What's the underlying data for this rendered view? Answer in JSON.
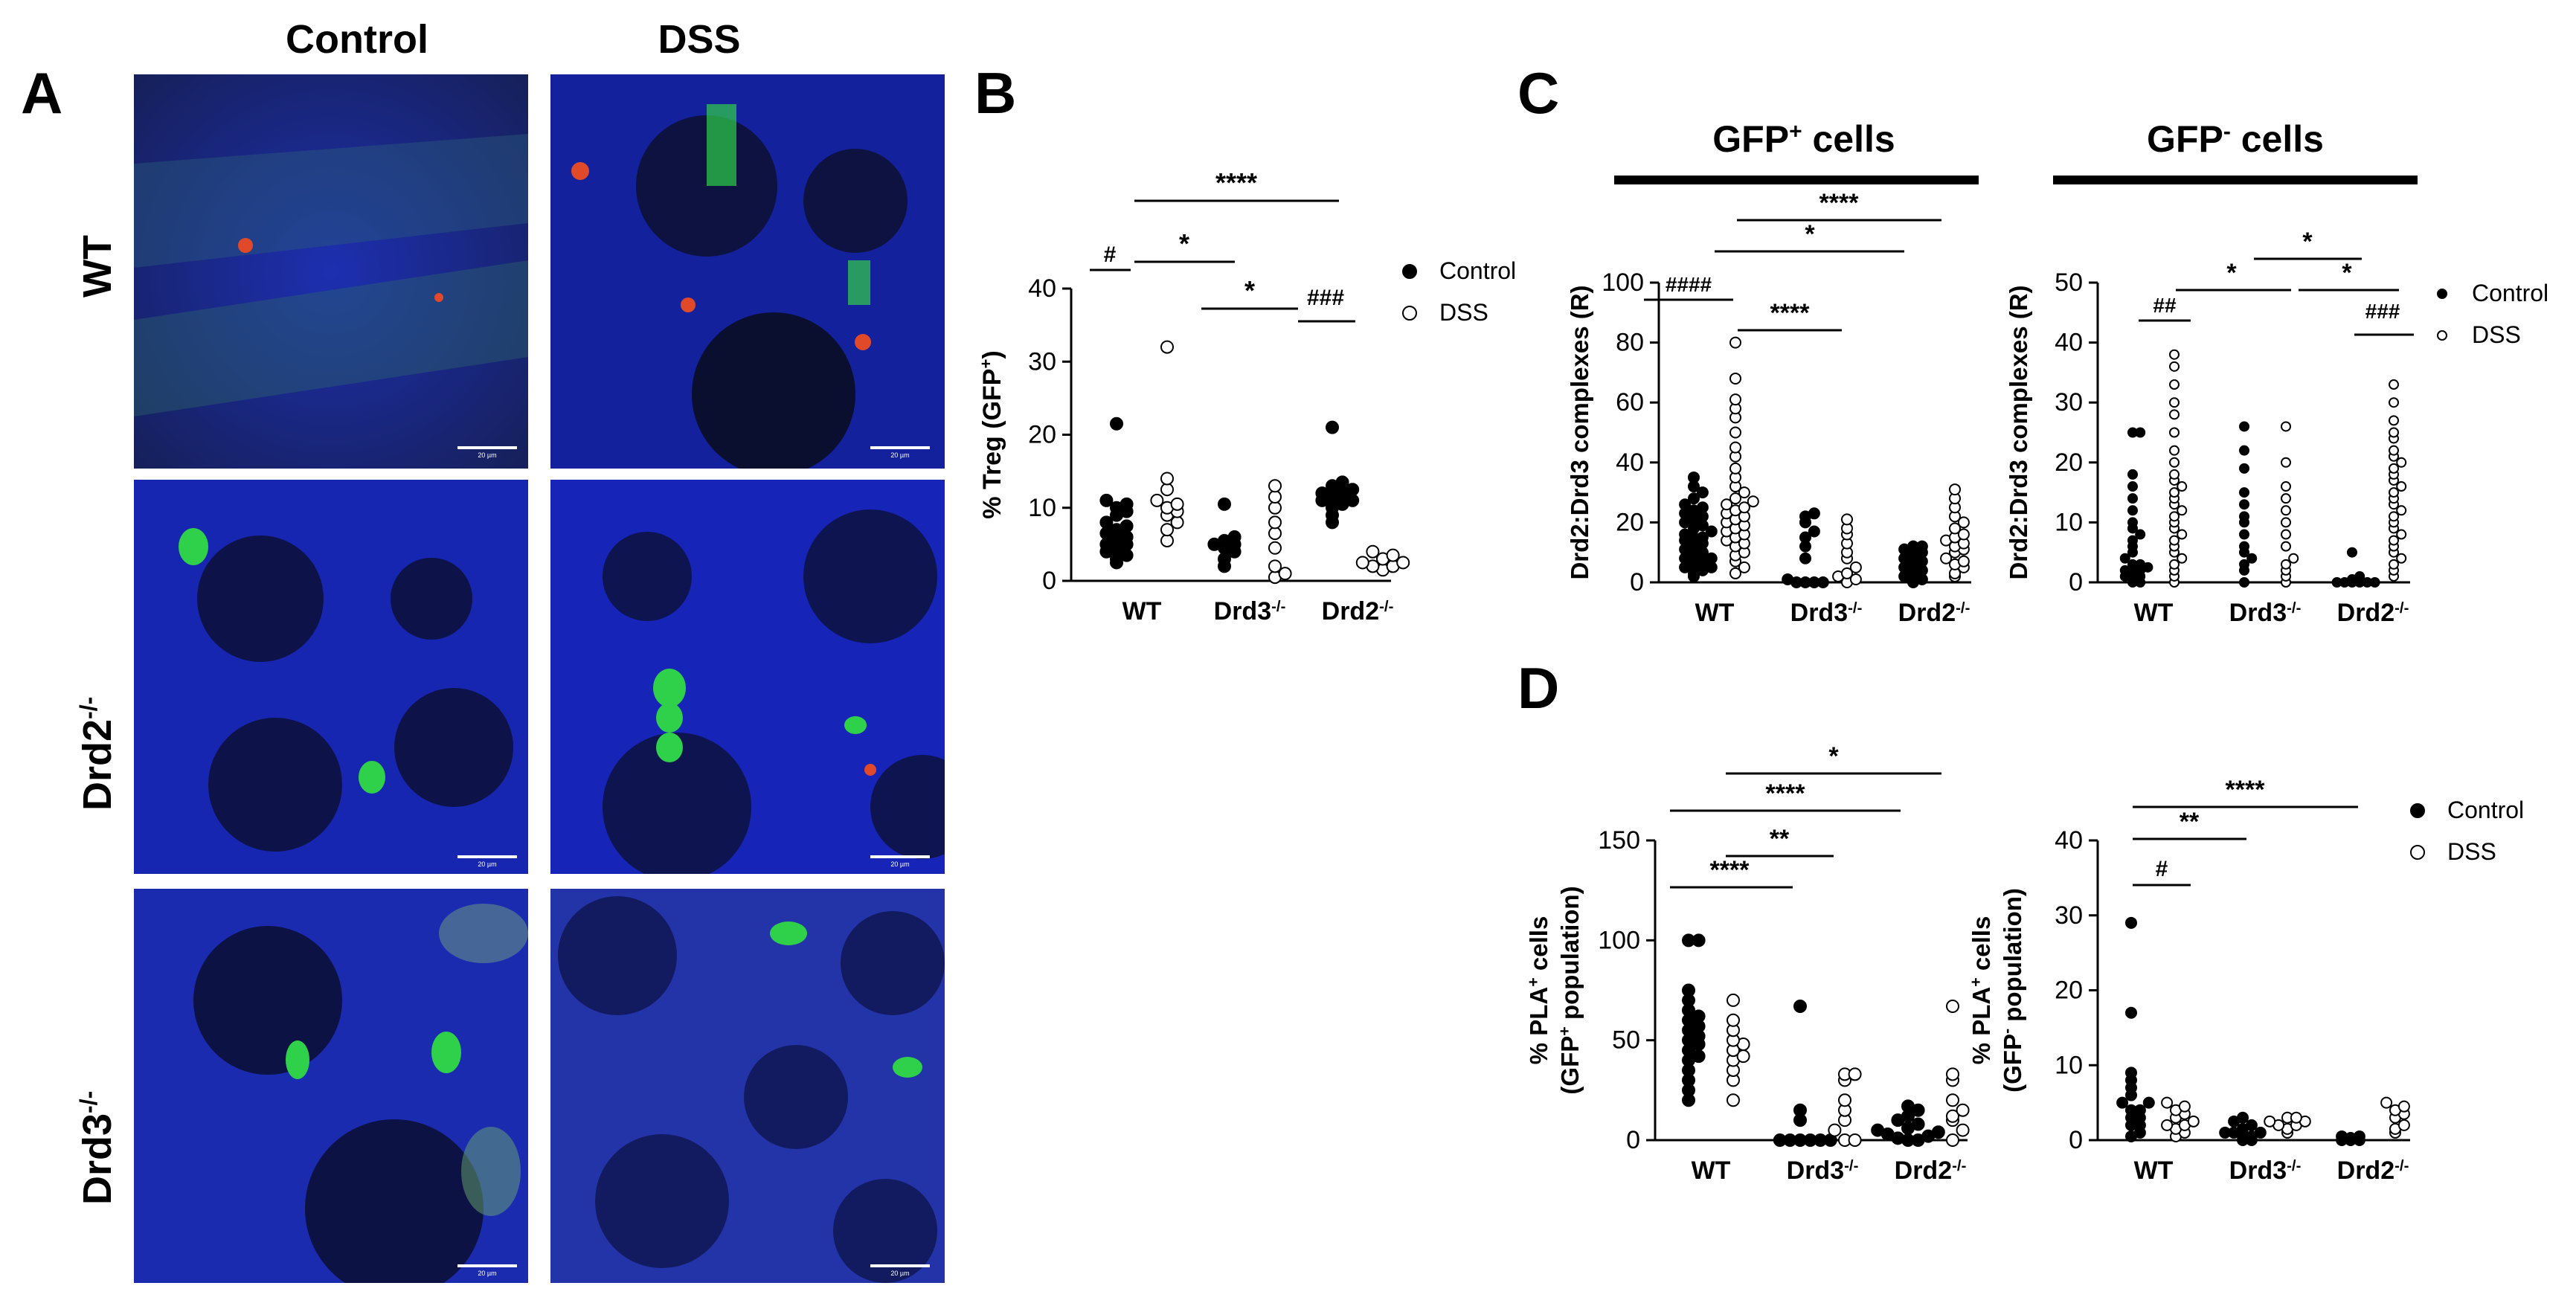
{
  "panels": {
    "A": "A",
    "B": "B",
    "C": "C",
    "D": "D"
  },
  "panel_a": {
    "col_control": "Control",
    "col_dss": "DSS",
    "row_wt": "WT",
    "row_drd2": "Drd2",
    "row_drd2_sup": "-/-",
    "row_drd3": "Drd3",
    "row_drd3_sup": "-/-",
    "scale_text": "20 µm",
    "colors": {
      "nucleus": "#1b2cc8",
      "gfp": "#2fd04a",
      "pla": "#e04a2a"
    }
  },
  "panel_c_headers": {
    "gfp_pos": "GFP",
    "gfp_pos_sup": "+",
    "gfp_pos_suffix": " cells",
    "gfp_neg": "GFP",
    "gfp_neg_sup": "-",
    "gfp_neg_suffix": " cells"
  },
  "legend": {
    "control": "Control",
    "dss": "DSS"
  },
  "chart_data": [
    {
      "id": "B",
      "type": "scatter",
      "ylabel": "% Treg (GFP+)",
      "ylim": [
        0,
        40
      ],
      "yticks": [
        0,
        10,
        20,
        30,
        40
      ],
      "categories": [
        "WT",
        "Drd3-/-",
        "Drd2-/-"
      ],
      "series": [
        {
          "name": "Control",
          "groups": [
            [
              2.5,
              3.0,
              3.5,
              4.0,
              4.5,
              5.0,
              5.0,
              5.5,
              6.0,
              6.5,
              7.0,
              7.5,
              8.0,
              9.0,
              9.5,
              10.0,
              10.5,
              11.0,
              21.5
            ],
            [
              2.0,
              3.0,
              4.0,
              4.5,
              5.0,
              5.0,
              5.5,
              6.0,
              10.5
            ],
            [
              8.0,
              9.0,
              10.0,
              10.5,
              11.0,
              11.0,
              11.5,
              12.0,
              12.0,
              12.5,
              13.0,
              13.5,
              21.0
            ]
          ]
        },
        {
          "name": "DSS",
          "groups": [
            [
              5.5,
              7.0,
              8.0,
              9.0,
              9.5,
              10.0,
              10.5,
              11.0,
              12.5,
              14.0,
              32.0
            ],
            [
              0.5,
              1.0,
              2.0,
              4.5,
              6.5,
              8.0,
              10.0,
              11.5,
              13.0
            ],
            [
              1.5,
              2.0,
              2.0,
              2.5,
              2.5,
              3.0,
              3.5,
              4.0
            ]
          ]
        }
      ],
      "annotations": [
        {
          "text": "#"
        },
        {
          "text": "****"
        },
        {
          "text": "*"
        },
        {
          "text": "*"
        },
        {
          "text": "###"
        }
      ]
    },
    {
      "id": "C-left",
      "type": "scatter",
      "ylabel": "Drd2:Drd3 complexes (R)",
      "ylim": [
        0,
        100
      ],
      "yticks": [
        0,
        20,
        40,
        60,
        80,
        100
      ],
      "categories": [
        "WT",
        "Drd3-/-",
        "Drd2-/-"
      ],
      "series": [
        {
          "name": "Control",
          "groups": [
            [
              2,
              3,
              4,
              5,
              5,
              6,
              7,
              8,
              8,
              9,
              10,
              11,
              12,
              13,
              14,
              15,
              15,
              16,
              17,
              18,
              19,
              20,
              21,
              22,
              23,
              24,
              25,
              26,
              28,
              30,
              32,
              35
            ],
            [
              0,
              0,
              0,
              0,
              1,
              8,
              12,
              15,
              17,
              20,
              22,
              23
            ],
            [
              0,
              1,
              2,
              3,
              4,
              5,
              6,
              7,
              8,
              9,
              10,
              11,
              12,
              12
            ]
          ]
        },
        {
          "name": "DSS",
          "groups": [
            [
              3,
              5,
              7,
              9,
              10,
              12,
              13,
              14,
              15,
              16,
              17,
              18,
              19,
              20,
              21,
              22,
              23,
              24,
              25,
              26,
              27,
              28,
              30,
              32,
              35,
              38,
              42,
              45,
              50,
              55,
              58,
              61,
              68,
              80
            ],
            [
              0,
              1,
              2,
              3,
              5,
              8,
              10,
              13,
              16,
              18,
              21
            ],
            [
              2,
              3,
              5,
              6,
              7,
              8,
              10,
              11,
              12,
              13,
              14,
              15,
              16,
              18,
              20,
              22,
              25,
              28,
              31
            ]
          ]
        }
      ],
      "annotations": [
        {
          "text": "####"
        },
        {
          "text": "****"
        },
        {
          "text": "*"
        },
        {
          "text": "****"
        }
      ]
    },
    {
      "id": "C-right",
      "type": "scatter",
      "ylabel": "Drd2:Drd3 complexes (R)",
      "ylim": [
        0,
        50
      ],
      "yticks": [
        0,
        10,
        20,
        30,
        40,
        50
      ],
      "categories": [
        "WT",
        "Drd3-/-",
        "Drd2-/-"
      ],
      "series": [
        {
          "name": "Control",
          "groups": [
            [
              0,
              0,
              0.5,
              1,
              1,
              1.5,
              2,
              2,
              2.5,
              3,
              3,
              4,
              5,
              6,
              7,
              8,
              9,
              10,
              12,
              14,
              16,
              18,
              25,
              25
            ],
            [
              0,
              2,
              3,
              4,
              5,
              6,
              8,
              10,
              11,
              13,
              15,
              19,
              22,
              26
            ],
            [
              0,
              0,
              0,
              0,
              0,
              0,
              0.5,
              1,
              5
            ]
          ]
        },
        {
          "name": "DSS",
          "groups": [
            [
              0,
              1,
              2,
              3,
              4,
              5,
              6,
              7,
              8,
              9,
              10,
              11,
              12,
              13,
              14,
              15,
              16,
              17,
              18,
              20,
              22,
              25,
              28,
              30,
              33,
              36,
              38
            ],
            [
              0,
              1,
              2,
              3,
              4,
              6,
              8,
              10,
              12,
              14,
              16,
              20,
              26
            ],
            [
              1,
              2,
              3,
              4,
              5,
              6,
              7,
              8,
              9,
              10,
              11,
              12,
              13,
              14,
              15,
              16,
              17,
              18,
              19,
              20,
              21,
              22,
              24,
              25,
              27,
              30,
              33
            ]
          ]
        }
      ],
      "annotations": [
        {
          "text": "##"
        },
        {
          "text": "*"
        },
        {
          "text": "*"
        },
        {
          "text": "*"
        },
        {
          "text": "###"
        }
      ]
    },
    {
      "id": "D-left",
      "type": "scatter",
      "ylabel": "% PLA+ cells (GFP+ population)",
      "ylim": [
        0,
        150
      ],
      "yticks": [
        0,
        50,
        100,
        150
      ],
      "categories": [
        "WT",
        "Drd3-/-",
        "Drd2-/-"
      ],
      "series": [
        {
          "name": "Control",
          "groups": [
            [
              20,
              25,
              30,
              35,
              40,
              42,
              45,
              48,
              50,
              52,
              55,
              57,
              60,
              62,
              65,
              70,
              75,
              100,
              100
            ],
            [
              0,
              0,
              0,
              0,
              0,
              0,
              10,
              15,
              67
            ],
            [
              0,
              0,
              1,
              2,
              3,
              4,
              5,
              6,
              8,
              10,
              12,
              15,
              17
            ]
          ]
        },
        {
          "name": "DSS",
          "groups": [
            [
              20,
              30,
              35,
              40,
              42,
              45,
              48,
              50,
              55,
              60,
              70
            ],
            [
              0,
              0,
              5,
              10,
              15,
              20,
              30,
              33,
              33
            ],
            [
              0,
              5,
              10,
              12,
              15,
              20,
              30,
              33,
              67
            ]
          ]
        }
      ],
      "annotations": [
        {
          "text": "****"
        },
        {
          "text": "**"
        },
        {
          "text": "****"
        },
        {
          "text": "*"
        }
      ]
    },
    {
      "id": "D-right",
      "type": "scatter",
      "ylabel": "% PLA+ cells (GFP- population)",
      "ylim": [
        0,
        40
      ],
      "yticks": [
        0,
        10,
        20,
        30,
        40
      ],
      "categories": [
        "WT",
        "Drd3-/-",
        "Drd2-/-"
      ],
      "series": [
        {
          "name": "Control",
          "groups": [
            [
              0.5,
              1,
              2,
              2,
              3,
              3,
              4,
              4,
              5,
              5,
              6,
              7,
              8,
              9,
              17,
              29
            ],
            [
              0,
              0,
              0.5,
              0.5,
              1,
              1,
              1,
              1.5,
              2,
              2.5,
              3
            ],
            [
              0,
              0,
              0,
              0.3,
              0.5,
              0.5
            ]
          ]
        },
        {
          "name": "DSS",
          "groups": [
            [
              0.5,
              1,
              1.5,
              2,
              2,
              2.5,
              3,
              3.5,
              4,
              4.5,
              5
            ],
            [
              1,
              1.5,
              2,
              2,
              2.5,
              2.5,
              3,
              3
            ],
            [
              1,
              1.5,
              2,
              3,
              3.5,
              4,
              4.5,
              5
            ]
          ]
        }
      ],
      "annotations": [
        {
          "text": "#"
        },
        {
          "text": "**"
        },
        {
          "text": "****"
        }
      ]
    }
  ]
}
